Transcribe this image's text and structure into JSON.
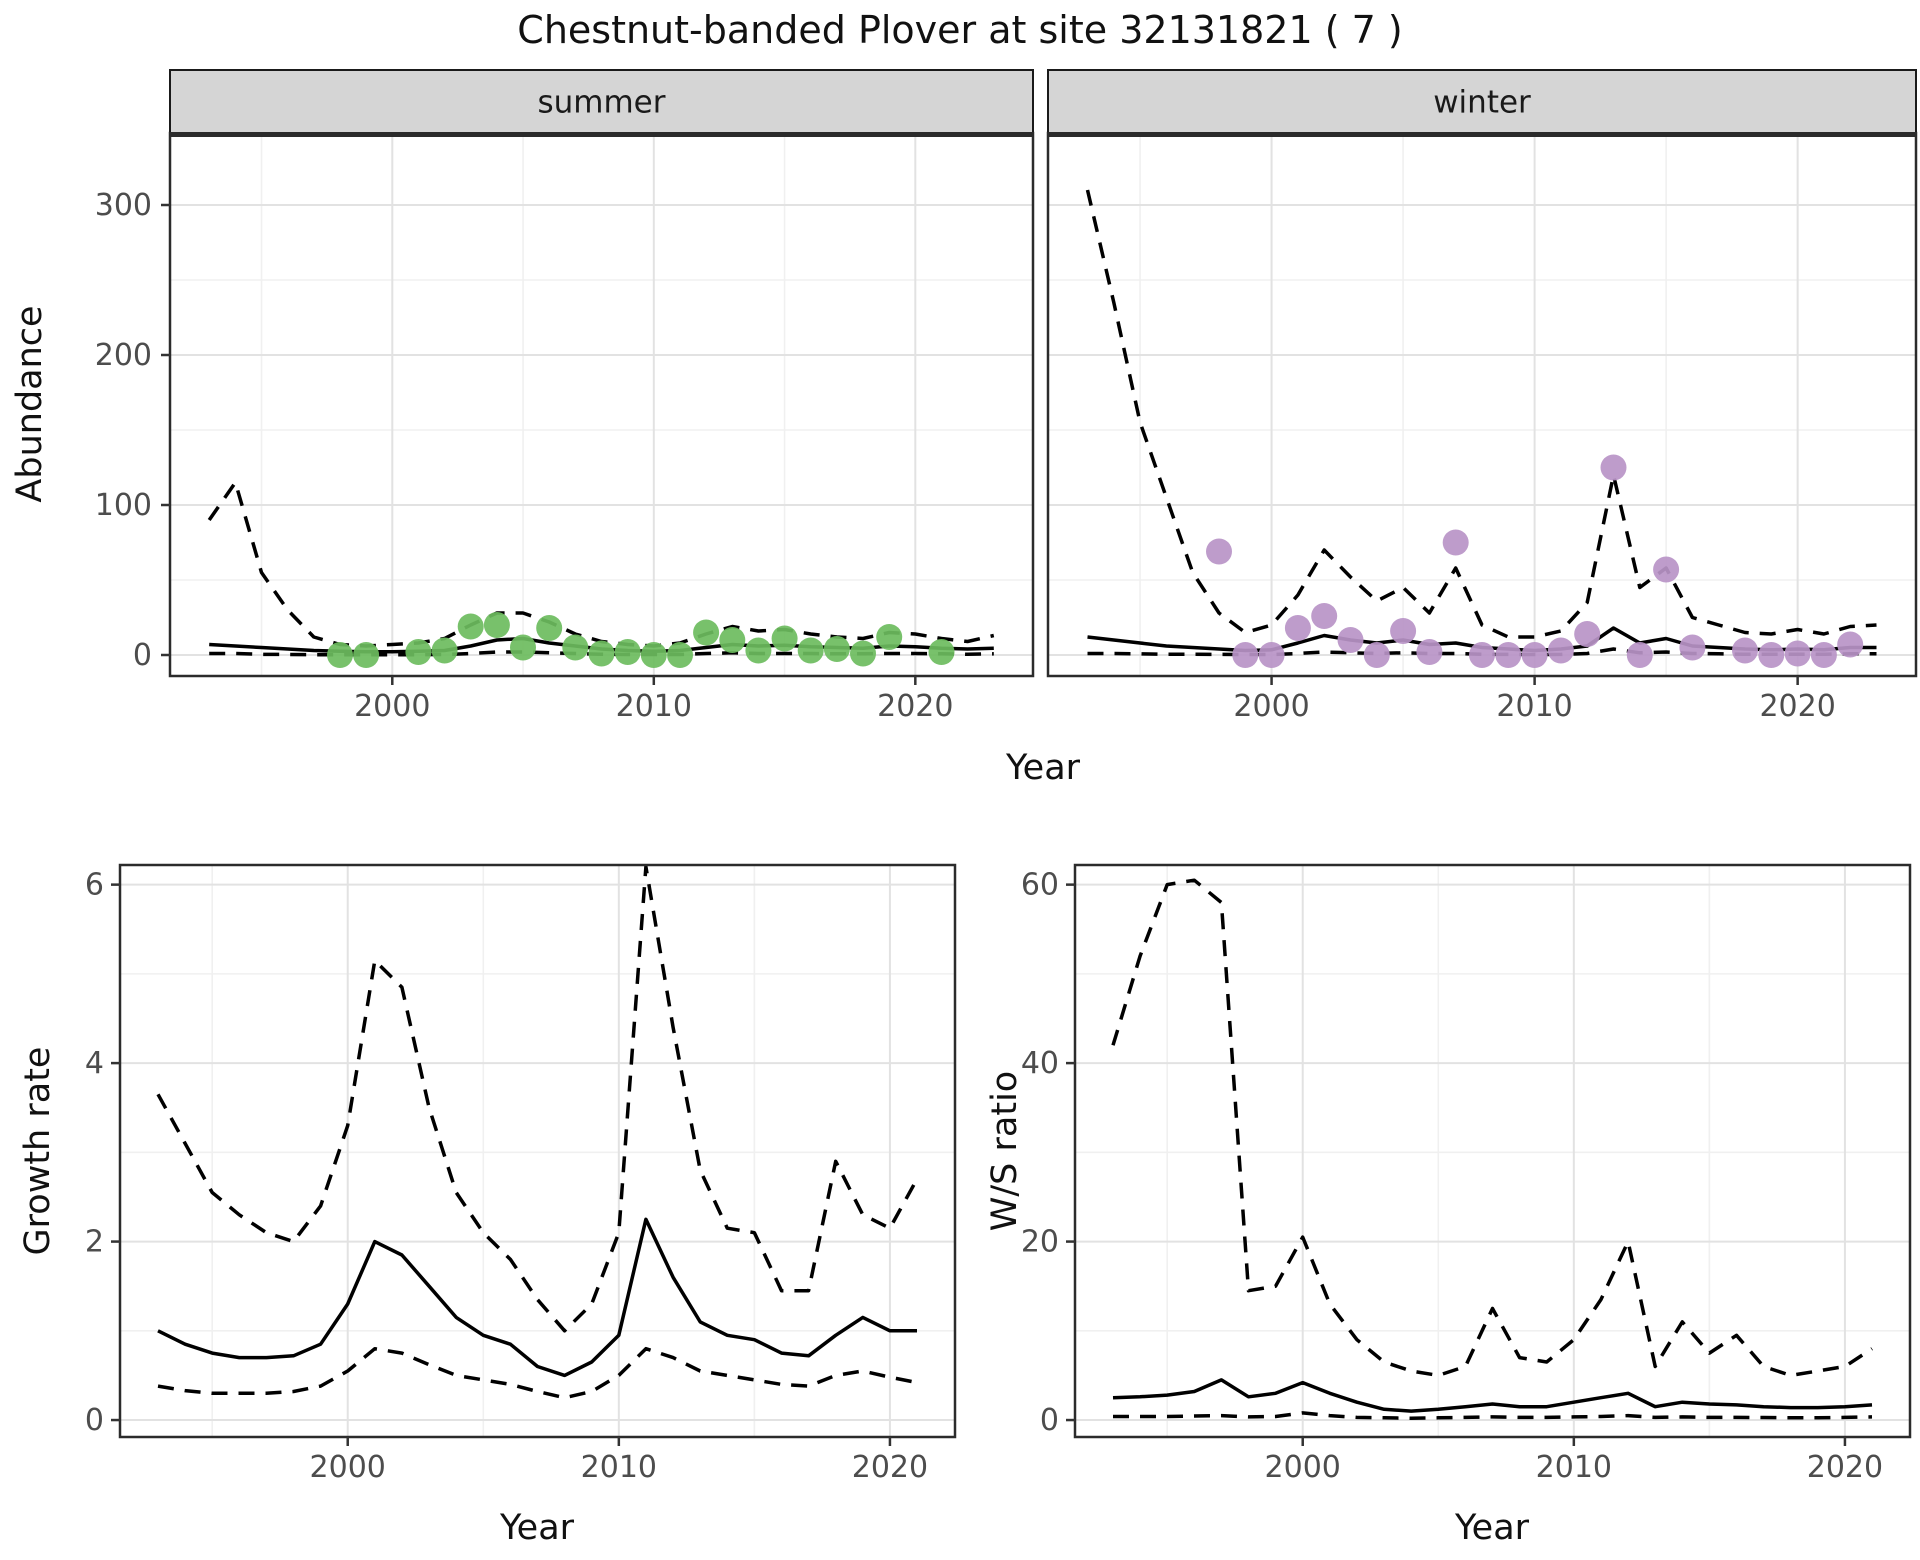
{
  "title": "Chestnut-banded Plover at site 32131821 ( 7 )",
  "colors": {
    "summer_points": "#6cbc5e",
    "winter_points": "#b894c7",
    "line": "#000000",
    "grid_major": "#e2e2e2",
    "grid_minor": "#f0f0f0",
    "strip_bg": "#d5d5d5",
    "strip_border": "#1a1a1a",
    "panel_border": "#2b2b2b",
    "tick_text": "#4d4d4d",
    "tick_mark": "#333333"
  },
  "axes": {
    "abundance_label": "Abundance",
    "year_label": "Year",
    "growth_label": "Growth rate",
    "ws_label": "W/S ratio"
  },
  "chart_data": [
    {
      "type": "line",
      "facet": "summer",
      "ylabel": "Abundance",
      "xlabel": "Year",
      "x": [
        1993,
        1994,
        1995,
        1996,
        1997,
        1998,
        1999,
        2000,
        2001,
        2002,
        2003,
        2004,
        2005,
        2006,
        2007,
        2008,
        2009,
        2010,
        2011,
        2012,
        2013,
        2014,
        2015,
        2016,
        2017,
        2018,
        2019,
        2020,
        2021,
        2022,
        2023
      ],
      "series": [
        {
          "name": "median",
          "style": "solid",
          "values": [
            7,
            6,
            5,
            4,
            3,
            2.5,
            2.2,
            2.2,
            2.5,
            3,
            6,
            10,
            11,
            8,
            6,
            4,
            3,
            2.5,
            3,
            5,
            7,
            6,
            6.5,
            5.5,
            5,
            4.5,
            6,
            5.5,
            4.5,
            4,
            4.5
          ]
        },
        {
          "name": "upper_95ci",
          "style": "dashed",
          "values": [
            90,
            115,
            55,
            30,
            12,
            7,
            6,
            7,
            8,
            11,
            20,
            28,
            28,
            22,
            14,
            9,
            7,
            6,
            8,
            14,
            19,
            16,
            17,
            14,
            12,
            11,
            15,
            14,
            11,
            9,
            13
          ]
        },
        {
          "name": "lower_95ci",
          "style": "dashed",
          "values": [
            1,
            1,
            0.5,
            0.3,
            0.2,
            0.2,
            0.2,
            0.2,
            0.2,
            0.3,
            1,
            2,
            2,
            1.5,
            1,
            0.5,
            0.3,
            0.3,
            0.3,
            1,
            1.5,
            1,
            1,
            1,
            0.8,
            0.8,
            1,
            1,
            0.8,
            0.5,
            0.8
          ]
        }
      ],
      "points": {
        "name": "observed_counts",
        "color_key": "summer_points",
        "years": [
          1998,
          1999,
          2001,
          2002,
          2003,
          2004,
          2005,
          2006,
          2007,
          2008,
          2009,
          2010,
          2011,
          2012,
          2013,
          2014,
          2015,
          2016,
          2017,
          2018,
          2019,
          2021
        ],
        "values": [
          0,
          0,
          2,
          3,
          19,
          20,
          5,
          18,
          5,
          1,
          2,
          0,
          0,
          15,
          10,
          3,
          11,
          3,
          4,
          1,
          12,
          2
        ]
      },
      "xlim": [
        1991.5,
        2024.5
      ],
      "ylim": [
        -14,
        348
      ],
      "xticks": [
        2000,
        2010,
        2020
      ],
      "xticks_minor": [
        1995,
        2005,
        2015
      ],
      "yticks": [
        0,
        100,
        200,
        300
      ],
      "yticks_minor": [
        50,
        150,
        250
      ]
    },
    {
      "type": "line",
      "facet": "winter",
      "ylabel": "Abundance",
      "xlabel": "Year",
      "x": [
        1993,
        1994,
        1995,
        1996,
        1997,
        1998,
        1999,
        2000,
        2001,
        2002,
        2003,
        2004,
        2005,
        2006,
        2007,
        2008,
        2009,
        2010,
        2011,
        2012,
        2013,
        2014,
        2015,
        2016,
        2017,
        2018,
        2019,
        2020,
        2021,
        2022,
        2023
      ],
      "series": [
        {
          "name": "median",
          "style": "solid",
          "values": [
            12,
            10,
            8,
            6,
            5,
            4,
            3,
            3.5,
            8,
            13,
            10,
            8,
            10,
            7,
            8,
            5,
            4,
            3,
            4,
            6,
            18,
            8,
            11,
            6,
            5,
            4,
            3.5,
            4,
            3.5,
            5,
            5
          ]
        },
        {
          "name": "upper_95ci",
          "style": "dashed",
          "values": [
            310,
            235,
            155,
            105,
            55,
            28,
            15,
            20,
            40,
            70,
            52,
            36,
            45,
            28,
            58,
            20,
            12,
            12,
            16,
            35,
            120,
            45,
            58,
            25,
            20,
            15,
            14,
            17,
            14,
            19,
            20
          ]
        },
        {
          "name": "lower_95ci",
          "style": "dashed",
          "values": [
            1,
            1,
            0.8,
            0.5,
            0.5,
            0.4,
            0.3,
            0.3,
            1,
            2,
            1.5,
            1,
            1.5,
            1,
            1,
            0.5,
            0.4,
            0.3,
            0.4,
            1,
            4,
            1.5,
            2,
            1,
            0.8,
            0.5,
            0.5,
            0.5,
            0.5,
            0.8,
            0.8
          ]
        }
      ],
      "points": {
        "name": "observed_counts",
        "color_key": "winter_points",
        "years": [
          1998,
          1999,
          2000,
          2001,
          2002,
          2003,
          2004,
          2005,
          2006,
          2007,
          2008,
          2009,
          2010,
          2011,
          2012,
          2013,
          2014,
          2015,
          2016,
          2018,
          2019,
          2020,
          2021,
          2022
        ],
        "values": [
          69,
          0,
          0,
          18,
          26,
          10,
          0,
          16,
          2,
          75,
          0,
          0,
          0,
          3,
          14,
          125,
          0,
          57,
          5,
          3,
          0,
          1,
          0,
          7
        ]
      },
      "xlim": [
        1991.5,
        2024.5
      ],
      "ylim": [
        -14,
        348
      ],
      "xticks": [
        2000,
        2010,
        2020
      ],
      "xticks_minor": [
        1995,
        2005,
        2015
      ],
      "yticks": [
        0,
        100,
        200,
        300
      ],
      "yticks_minor": [
        50,
        150,
        250
      ]
    },
    {
      "type": "line",
      "facet": null,
      "ylabel": "Growth rate",
      "xlabel": "Year",
      "x": [
        1993,
        1994,
        1995,
        1996,
        1997,
        1998,
        1999,
        2000,
        2001,
        2002,
        2003,
        2004,
        2005,
        2006,
        2007,
        2008,
        2009,
        2010,
        2011,
        2012,
        2013,
        2014,
        2015,
        2016,
        2017,
        2018,
        2019,
        2020,
        2021
      ],
      "series": [
        {
          "name": "median",
          "style": "solid",
          "values": [
            1.0,
            0.85,
            0.75,
            0.7,
            0.7,
            0.72,
            0.85,
            1.3,
            2.0,
            1.85,
            1.5,
            1.15,
            0.95,
            0.85,
            0.6,
            0.5,
            0.65,
            0.95,
            2.25,
            1.6,
            1.1,
            0.95,
            0.9,
            0.75,
            0.72,
            0.95,
            1.15,
            1.0,
            1.0
          ]
        },
        {
          "name": "upper_95ci",
          "style": "dashed",
          "values": [
            3.65,
            3.1,
            2.55,
            2.3,
            2.1,
            2.0,
            2.4,
            3.3,
            5.15,
            4.85,
            3.5,
            2.55,
            2.1,
            1.8,
            1.35,
            1.0,
            1.3,
            2.1,
            6.2,
            4.4,
            2.8,
            2.15,
            2.1,
            1.45,
            1.45,
            2.9,
            2.3,
            2.15,
            2.7
          ]
        },
        {
          "name": "lower_95ci",
          "style": "dashed",
          "values": [
            0.38,
            0.33,
            0.3,
            0.3,
            0.3,
            0.32,
            0.38,
            0.55,
            0.8,
            0.75,
            0.62,
            0.5,
            0.45,
            0.4,
            0.32,
            0.25,
            0.32,
            0.5,
            0.8,
            0.7,
            0.55,
            0.5,
            0.45,
            0.4,
            0.38,
            0.5,
            0.55,
            0.48,
            0.42
          ]
        }
      ],
      "points": null,
      "xlim": [
        1991.6,
        2022.4
      ],
      "ylim": [
        -0.19,
        6.22
      ],
      "xticks": [
        2000,
        2010,
        2020
      ],
      "xticks_minor": [
        1995,
        2005,
        2015
      ],
      "yticks": [
        0,
        2,
        4,
        6
      ],
      "yticks_minor": [
        1,
        3,
        5
      ]
    },
    {
      "type": "line",
      "facet": null,
      "ylabel": "W/S ratio",
      "xlabel": "Year",
      "x": [
        1993,
        1994,
        1995,
        1996,
        1997,
        1998,
        1999,
        2000,
        2001,
        2002,
        2003,
        2004,
        2005,
        2006,
        2007,
        2008,
        2009,
        2010,
        2011,
        2012,
        2013,
        2014,
        2015,
        2016,
        2017,
        2018,
        2019,
        2020,
        2021
      ],
      "series": [
        {
          "name": "median",
          "style": "solid",
          "values": [
            2.5,
            2.6,
            2.8,
            3.2,
            4.5,
            2.6,
            3.0,
            4.2,
            3.0,
            2.0,
            1.2,
            1.0,
            1.2,
            1.5,
            1.8,
            1.5,
            1.5,
            2.0,
            2.5,
            3.0,
            1.5,
            2.0,
            1.8,
            1.7,
            1.5,
            1.4,
            1.4,
            1.5,
            1.7
          ]
        },
        {
          "name": "upper_95ci",
          "style": "dashed",
          "values": [
            42,
            52,
            60,
            60.5,
            58,
            14.5,
            15,
            20.5,
            13,
            9,
            6.5,
            5.5,
            5,
            6,
            12.5,
            7,
            6.5,
            9,
            13.5,
            20,
            6,
            11,
            7.5,
            9.5,
            6,
            5,
            5.5,
            6,
            8
          ]
        },
        {
          "name": "lower_95ci",
          "style": "dashed",
          "values": [
            0.4,
            0.4,
            0.4,
            0.45,
            0.5,
            0.35,
            0.4,
            0.8,
            0.5,
            0.3,
            0.25,
            0.2,
            0.25,
            0.3,
            0.35,
            0.3,
            0.3,
            0.35,
            0.4,
            0.5,
            0.3,
            0.35,
            0.3,
            0.3,
            0.28,
            0.25,
            0.25,
            0.3,
            0.35
          ]
        }
      ],
      "points": null,
      "xlim": [
        1991.6,
        2022.4
      ],
      "ylim": [
        -1.9,
        62.2
      ],
      "xticks": [
        2000,
        2010,
        2020
      ],
      "xticks_minor": [
        1995,
        2005,
        2015
      ],
      "yticks": [
        0,
        20,
        40,
        60
      ],
      "yticks_minor": [
        10,
        30,
        50
      ]
    }
  ]
}
